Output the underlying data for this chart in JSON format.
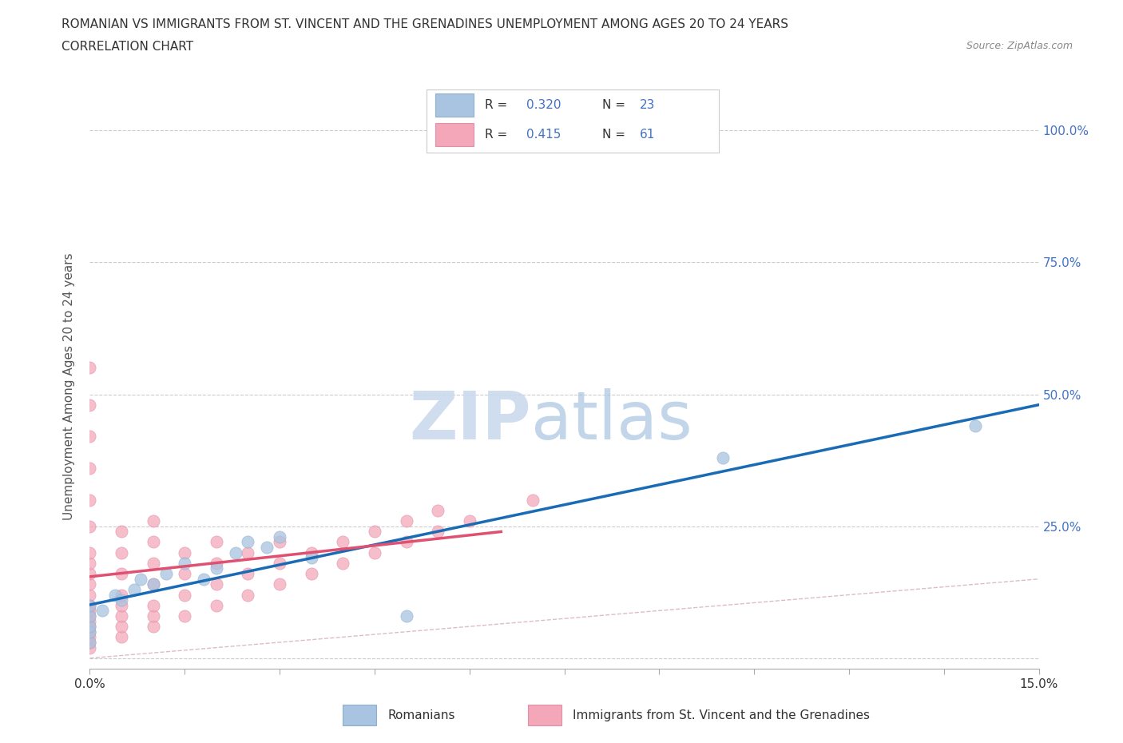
{
  "title_line1": "ROMANIAN VS IMMIGRANTS FROM ST. VINCENT AND THE GRENADINES UNEMPLOYMENT AMONG AGES 20 TO 24 YEARS",
  "title_line2": "CORRELATION CHART",
  "source": "Source: ZipAtlas.com",
  "ylabel": "Unemployment Among Ages 20 to 24 years",
  "xlim": [
    0.0,
    0.15
  ],
  "ylim": [
    -0.02,
    1.05
  ],
  "romanian_color": "#a8c4e0",
  "svg_color": "#f4a7b9",
  "ro_line_color": "#1a6bb5",
  "svg_line_color": "#e05070",
  "diagonal_color": "#d0a0b0",
  "romanian_R": 0.32,
  "romanian_N": 23,
  "svg_R": 0.415,
  "svg_N": 61,
  "background_color": "#ffffff",
  "grid_color": "#cccccc",
  "ro_x": [
    0.0,
    0.0,
    0.0,
    0.0,
    0.0,
    0.002,
    0.004,
    0.005,
    0.007,
    0.008,
    0.01,
    0.012,
    0.015,
    0.018,
    0.02,
    0.023,
    0.025,
    0.028,
    0.03,
    0.035,
    0.05,
    0.1,
    0.14
  ],
  "ro_y": [
    0.03,
    0.05,
    0.06,
    0.08,
    0.1,
    0.09,
    0.12,
    0.11,
    0.13,
    0.15,
    0.14,
    0.16,
    0.18,
    0.15,
    0.17,
    0.2,
    0.22,
    0.21,
    0.23,
    0.19,
    0.08,
    0.38,
    0.44
  ],
  "svg_x": [
    0.0,
    0.0,
    0.0,
    0.0,
    0.0,
    0.0,
    0.0,
    0.0,
    0.0,
    0.0,
    0.0,
    0.0,
    0.0,
    0.0,
    0.0,
    0.0,
    0.0,
    0.0,
    0.0,
    0.0,
    0.005,
    0.005,
    0.005,
    0.005,
    0.005,
    0.005,
    0.005,
    0.005,
    0.01,
    0.01,
    0.01,
    0.01,
    0.01,
    0.01,
    0.01,
    0.015,
    0.015,
    0.015,
    0.015,
    0.02,
    0.02,
    0.02,
    0.02,
    0.025,
    0.025,
    0.025,
    0.03,
    0.03,
    0.03,
    0.035,
    0.035,
    0.04,
    0.04,
    0.045,
    0.045,
    0.05,
    0.05,
    0.055,
    0.055,
    0.06,
    0.07
  ],
  "svg_y": [
    0.02,
    0.03,
    0.04,
    0.05,
    0.06,
    0.07,
    0.08,
    0.09,
    0.1,
    0.12,
    0.14,
    0.16,
    0.18,
    0.2,
    0.25,
    0.3,
    0.36,
    0.42,
    0.48,
    0.55,
    0.04,
    0.06,
    0.08,
    0.1,
    0.12,
    0.16,
    0.2,
    0.24,
    0.06,
    0.08,
    0.1,
    0.14,
    0.18,
    0.22,
    0.26,
    0.08,
    0.12,
    0.16,
    0.2,
    0.1,
    0.14,
    0.18,
    0.22,
    0.12,
    0.16,
    0.2,
    0.14,
    0.18,
    0.22,
    0.16,
    0.2,
    0.18,
    0.22,
    0.2,
    0.24,
    0.22,
    0.26,
    0.24,
    0.28,
    0.26,
    0.3
  ]
}
